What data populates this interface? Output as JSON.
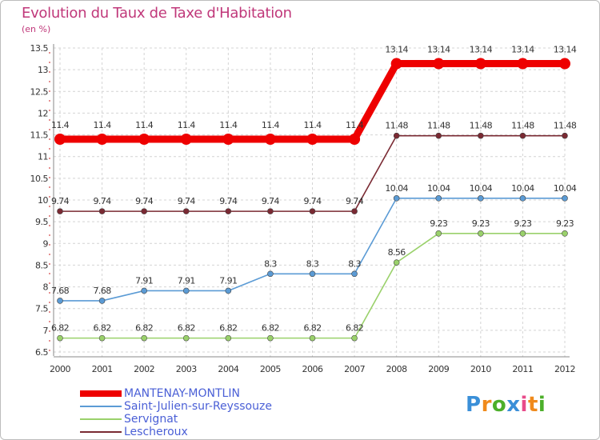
{
  "chart_data": {
    "type": "line",
    "title": "Evolution du Taux de Taxe d'Habitation",
    "subtitle": "(en %)",
    "xlabel": "",
    "ylabel": "",
    "ylim": [
      6.5,
      13.5
    ],
    "yticks": [
      "6.5",
      "7",
      "7.5",
      "8",
      "8.5",
      "9",
      "9.5",
      "10",
      "10.5",
      "11",
      "11.5",
      "12",
      "12.5",
      "13",
      "13.5"
    ],
    "x": [
      "2000",
      "2001",
      "2002",
      "2003",
      "2004",
      "2005",
      "2006",
      "2007",
      "2008",
      "2009",
      "2010",
      "2011",
      "2012"
    ],
    "series": [
      {
        "name": "MANTENAY-MONTLIN",
        "color": "#ee0000",
        "emphasis": "thick",
        "values": [
          11.4,
          11.4,
          11.4,
          11.4,
          11.4,
          11.4,
          11.4,
          11.4,
          13.14,
          13.14,
          13.14,
          13.14,
          13.14
        ],
        "labels": [
          "11.4",
          "11.4",
          "11.4",
          "11.4",
          "11.4",
          "11.4",
          "11.4",
          "11.4",
          "13.14",
          "13.14",
          "13.14",
          "13.14",
          "13.14"
        ]
      },
      {
        "name": "Saint-Julien-sur-Reyssouze",
        "color": "#5b9bd5",
        "emphasis": "thin",
        "values": [
          7.68,
          7.68,
          7.91,
          7.91,
          7.91,
          8.3,
          8.3,
          8.3,
          10.04,
          10.04,
          10.04,
          10.04,
          10.04
        ],
        "labels": [
          "7.68",
          "7.68",
          "7.91",
          "7.91",
          "7.91",
          "8.3",
          "8.3",
          "8.3",
          "10.04",
          "10.04",
          "10.04",
          "10.04",
          "10.04"
        ]
      },
      {
        "name": "Servignat",
        "color": "#9ad16b",
        "emphasis": "thin",
        "values": [
          6.82,
          6.82,
          6.82,
          6.82,
          6.82,
          6.82,
          6.82,
          6.82,
          8.56,
          9.23,
          9.23,
          9.23,
          9.23
        ],
        "labels": [
          "6.82",
          "6.82",
          "6.82",
          "6.82",
          "6.82",
          "6.82",
          "6.82",
          "6.82",
          "8.56",
          "9.23",
          "9.23",
          "9.23",
          "9.23"
        ]
      },
      {
        "name": "Lescheroux",
        "color": "#7a2a33",
        "emphasis": "thin",
        "values": [
          9.74,
          9.74,
          9.74,
          9.74,
          9.74,
          9.74,
          9.74,
          9.74,
          11.48,
          11.48,
          11.48,
          11.48,
          11.48
        ],
        "labels": [
          "9.74",
          "9.74",
          "9.74",
          "9.74",
          "9.74",
          "9.74",
          "9.74",
          "9.74",
          "11.48",
          "11.48",
          "11.48",
          "11.48",
          "11.48"
        ]
      }
    ],
    "legend": "bottom-left"
  },
  "brand": {
    "letters": [
      "P",
      "r",
      "o",
      "x",
      "i",
      "t",
      "i"
    ],
    "colors": [
      "#3a8fd8",
      "#f08a1c",
      "#4caf2a",
      "#3a8fd8",
      "#e84b8a",
      "#f08a1c",
      "#4caf2a"
    ]
  }
}
